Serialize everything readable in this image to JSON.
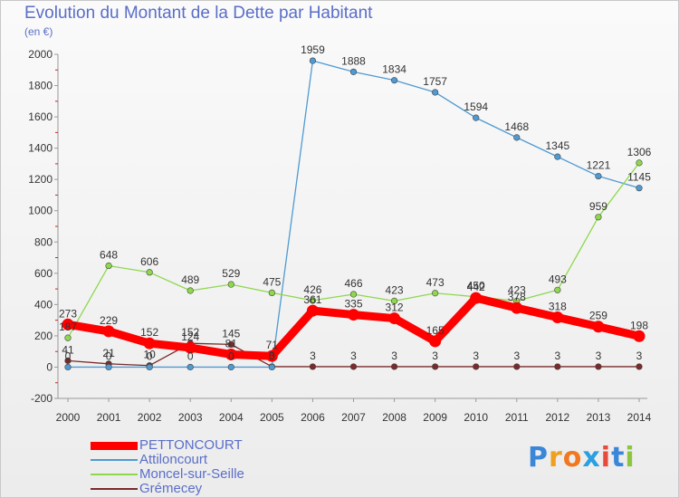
{
  "chart_data": {
    "type": "line",
    "title": "Evolution du Montant de la Dette par Habitant",
    "subtitle": "(en €)",
    "x": [
      "2000",
      "2001",
      "2002",
      "2003",
      "2004",
      "2005",
      "2006",
      "2007",
      "2008",
      "2009",
      "2010",
      "2011",
      "2012",
      "2013",
      "2014"
    ],
    "ylim": [
      -200,
      2000
    ],
    "yticks": [
      "-200",
      "0",
      "200",
      "400",
      "600",
      "800",
      "1000",
      "1200",
      "1400",
      "1600",
      "1800",
      "2000"
    ],
    "grid": false,
    "legend_position": "bottom-left",
    "series": [
      {
        "name": "PETTONCOURT",
        "color": "#ff0000",
        "values": [
          273,
          229,
          152,
          124,
          81,
          71,
          361,
          335,
          312,
          165,
          442,
          378,
          318,
          259,
          198
        ],
        "labels": [
          "273",
          "229",
          "152",
          "124",
          "81",
          "71",
          "361",
          "335",
          "312",
          "165",
          "442",
          "378",
          "318",
          "259",
          "198"
        ]
      },
      {
        "name": "Attiloncourt",
        "color": "#4f9ad2",
        "values": [
          0,
          0,
          0,
          0,
          0,
          0,
          1959,
          1888,
          1834,
          1757,
          1594,
          1468,
          1345,
          1221,
          1145
        ],
        "labels": [
          "0",
          "0",
          "0",
          "0",
          "0",
          "0",
          "1959",
          "1888",
          "1834",
          "1757",
          "1594",
          "1468",
          "1345",
          "1221",
          "1145"
        ]
      },
      {
        "name": "Moncel-sur-Seille",
        "color": "#8ed84e",
        "values": [
          187,
          648,
          606,
          489,
          529,
          475,
          426,
          466,
          423,
          473,
          450,
          423,
          493,
          959,
          1306
        ],
        "labels": [
          "187",
          "648",
          "606",
          "489",
          "529",
          "475",
          "426",
          "466",
          "423",
          "473",
          "450",
          "423",
          "493",
          "959",
          "1306"
        ]
      },
      {
        "name": "Grémecey",
        "color": "#7a2a2a",
        "values": [
          41,
          21,
          10,
          152,
          145,
          3,
          3,
          3,
          3,
          3,
          3,
          3,
          3,
          3,
          3
        ],
        "labels": [
          "41",
          "21",
          "10",
          "152",
          "145",
          "3",
          "3",
          "3",
          "3",
          "3",
          "3",
          "3",
          "3",
          "3",
          "3"
        ]
      }
    ]
  },
  "logo": {
    "text": "Proxiti",
    "colors": [
      "#3a86d9",
      "#f0a020",
      "#f07820",
      "#2aa0e0",
      "#e64b3c",
      "#3a86d9",
      "#8cc63f"
    ]
  }
}
